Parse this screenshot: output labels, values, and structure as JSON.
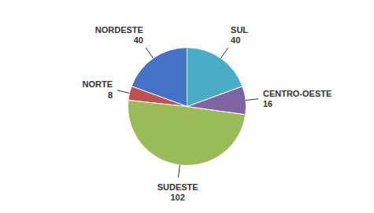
{
  "chart_data": {
    "type": "pie",
    "categories": [
      "NORDESTE",
      "NORTE",
      "SUDESTE",
      "CENTRO-OESTE",
      "SUL"
    ],
    "values": [
      40,
      8,
      102,
      16,
      40
    ],
    "colors": [
      "#4472C4",
      "#C0504D",
      "#9BBB59",
      "#8064A2",
      "#4BACC6"
    ],
    "data_labels": true
  }
}
